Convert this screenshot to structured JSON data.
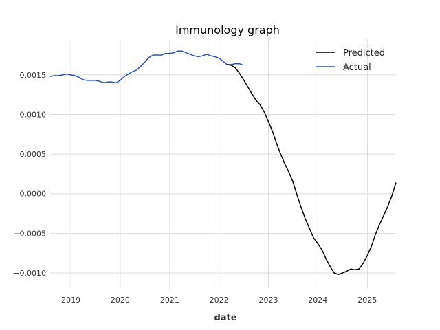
{
  "chart_data": {
    "type": "line",
    "title": "Immunology graph",
    "xlabel": "date",
    "ylabel": "",
    "x_range": [
      "2018-08-01",
      "2025-08-01"
    ],
    "ylim": [
      -0.0012,
      0.00195
    ],
    "grid": true,
    "legend_position": "top-right",
    "x_ticks": [
      "2019",
      "2020",
      "2021",
      "2022",
      "2023",
      "2024",
      "2025"
    ],
    "y_ticks": [
      "0.0015",
      "0.0010",
      "0.0005",
      "0.0000",
      "−0.0005",
      "−0.0010"
    ],
    "y_tick_values": [
      0.0015,
      0.001,
      0.0005,
      0.0,
      -0.0005,
      -0.001
    ],
    "series": [
      {
        "name": "Predicted",
        "color": "#000000",
        "points": [
          [
            "2022-03-01",
            0.00163
          ],
          [
            "2022-04-01",
            0.00162
          ],
          [
            "2022-05-01",
            0.00159
          ],
          [
            "2022-06-01",
            0.00152
          ],
          [
            "2022-07-01",
            0.00144
          ],
          [
            "2022-08-01",
            0.00135
          ],
          [
            "2022-09-01",
            0.00126
          ],
          [
            "2022-10-01",
            0.00118
          ],
          [
            "2022-11-01",
            0.00112
          ],
          [
            "2022-12-01",
            0.00103
          ],
          [
            "2023-01-01",
            0.00091
          ],
          [
            "2023-02-01",
            0.00078
          ],
          [
            "2023-03-01",
            0.00064
          ],
          [
            "2023-04-01",
            0.0005
          ],
          [
            "2023-05-01",
            0.00038
          ],
          [
            "2023-06-01",
            0.00027
          ],
          [
            "2023-07-01",
            0.00015
          ],
          [
            "2023-08-01",
            -2e-05
          ],
          [
            "2023-09-01",
            -0.00018
          ],
          [
            "2023-10-01",
            -0.00032
          ],
          [
            "2023-11-01",
            -0.00044
          ],
          [
            "2023-12-01",
            -0.00056
          ],
          [
            "2024-01-01",
            -0.00063
          ],
          [
            "2024-02-01",
            -0.00071
          ],
          [
            "2024-03-01",
            -0.00082
          ],
          [
            "2024-04-01",
            -0.00092
          ],
          [
            "2024-05-01",
            -0.001
          ],
          [
            "2024-06-01",
            -0.00102
          ],
          [
            "2024-07-01",
            -0.001
          ],
          [
            "2024-08-01",
            -0.00098
          ],
          [
            "2024-09-01",
            -0.00095
          ],
          [
            "2024-10-01",
            -0.00096
          ],
          [
            "2024-11-01",
            -0.00095
          ],
          [
            "2024-12-01",
            -0.00088
          ],
          [
            "2025-01-01",
            -0.00078
          ],
          [
            "2025-02-01",
            -0.00066
          ],
          [
            "2025-03-01",
            -0.00052
          ],
          [
            "2025-04-01",
            -0.00039
          ],
          [
            "2025-05-01",
            -0.00028
          ],
          [
            "2025-06-01",
            -0.00016
          ],
          [
            "2025-07-01",
            -3e-05
          ],
          [
            "2025-08-01",
            0.00014
          ]
        ]
      },
      {
        "name": "Actual",
        "color": "#1f4fe0",
        "points": [
          [
            "2018-08-01",
            0.00148
          ],
          [
            "2018-09-01",
            0.00149
          ],
          [
            "2018-10-01",
            0.00149
          ],
          [
            "2018-11-01",
            0.0015
          ],
          [
            "2018-12-01",
            0.00151
          ],
          [
            "2019-01-01",
            0.0015
          ],
          [
            "2019-02-01",
            0.00149
          ],
          [
            "2019-03-01",
            0.00147
          ],
          [
            "2019-04-01",
            0.00144
          ],
          [
            "2019-05-01",
            0.00143
          ],
          [
            "2019-06-01",
            0.00143
          ],
          [
            "2019-07-01",
            0.00143
          ],
          [
            "2019-08-01",
            0.00142
          ],
          [
            "2019-09-01",
            0.0014
          ],
          [
            "2019-10-01",
            0.00141
          ],
          [
            "2019-11-01",
            0.00141
          ],
          [
            "2019-12-01",
            0.0014
          ],
          [
            "2020-01-01",
            0.00143
          ],
          [
            "2020-02-01",
            0.00148
          ],
          [
            "2020-03-01",
            0.00151
          ],
          [
            "2020-04-01",
            0.00154
          ],
          [
            "2020-05-01",
            0.00156
          ],
          [
            "2020-06-01",
            0.00161
          ],
          [
            "2020-07-01",
            0.00166
          ],
          [
            "2020-08-01",
            0.00172
          ],
          [
            "2020-09-01",
            0.00175
          ],
          [
            "2020-10-01",
            0.00175
          ],
          [
            "2020-11-01",
            0.00175
          ],
          [
            "2020-12-01",
            0.00177
          ],
          [
            "2021-01-01",
            0.00177
          ],
          [
            "2021-02-01",
            0.00178
          ],
          [
            "2021-03-01",
            0.0018
          ],
          [
            "2021-04-01",
            0.0018
          ],
          [
            "2021-05-01",
            0.00178
          ],
          [
            "2021-06-01",
            0.00176
          ],
          [
            "2021-07-01",
            0.00174
          ],
          [
            "2021-08-01",
            0.00173
          ],
          [
            "2021-09-01",
            0.00174
          ],
          [
            "2021-10-01",
            0.00176
          ],
          [
            "2021-11-01",
            0.00174
          ],
          [
            "2021-12-01",
            0.00173
          ],
          [
            "2022-01-01",
            0.00171
          ],
          [
            "2022-02-01",
            0.00167
          ],
          [
            "2022-03-01",
            0.00163
          ],
          [
            "2022-04-01",
            0.00163
          ],
          [
            "2022-05-01",
            0.00164
          ],
          [
            "2022-06-01",
            0.00164
          ],
          [
            "2022-07-01",
            0.00162
          ]
        ]
      }
    ]
  }
}
